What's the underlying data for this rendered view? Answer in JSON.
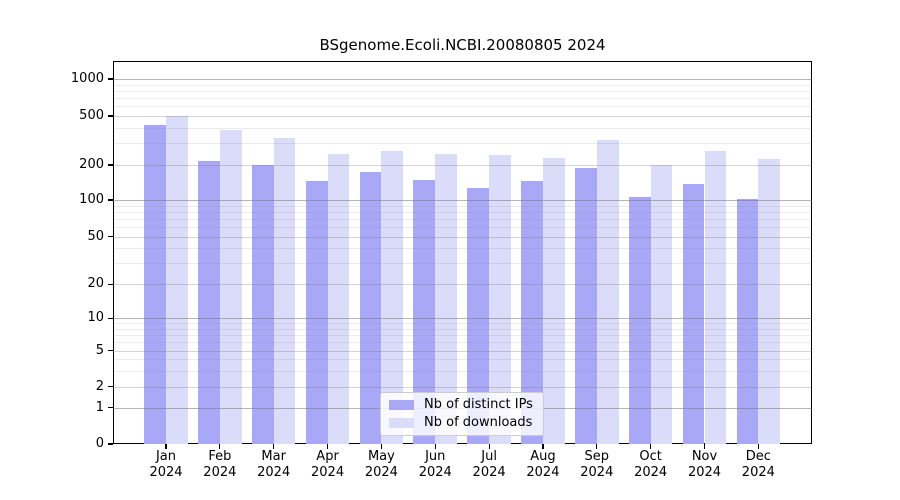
{
  "title": "BSgenome.Ecoli.NCBI.20080805 2024",
  "legend": {
    "items": [
      {
        "label": "Nb of distinct IPs",
        "color": "#a8a8f7",
        "key": "distinct-ips"
      },
      {
        "label": "Nb of downloads",
        "color": "#dbdbfa",
        "key": "downloads"
      }
    ]
  },
  "y_axis": {
    "tick_labels": [
      "0",
      "1",
      "2",
      "5",
      "10",
      "20",
      "50",
      "100",
      "200",
      "500",
      "1000"
    ]
  },
  "x_axis": {
    "months": [
      "Jan",
      "Feb",
      "Mar",
      "Apr",
      "May",
      "Jun",
      "Jul",
      "Aug",
      "Sep",
      "Oct",
      "Nov",
      "Dec"
    ],
    "year": "2024"
  },
  "chart_data": {
    "type": "bar",
    "title": "BSgenome.Ecoli.NCBI.20080805 2024",
    "categories": [
      "Jan 2024",
      "Feb 2024",
      "Mar 2024",
      "Apr 2024",
      "May 2024",
      "Jun 2024",
      "Jul 2024",
      "Aug 2024",
      "Sep 2024",
      "Oct 2024",
      "Nov 2024",
      "Dec 2024"
    ],
    "series": [
      {
        "name": "Nb of distinct IPs",
        "color": "#a8a8f7",
        "values": [
          420,
          215,
          200,
          145,
          175,
          150,
          128,
          145,
          188,
          107,
          138,
          102
        ]
      },
      {
        "name": "Nb of downloads",
        "color": "#dbdbfa",
        "values": [
          500,
          382,
          330,
          245,
          260,
          245,
          240,
          230,
          320,
          200,
          258,
          222
        ]
      }
    ],
    "yscale": "symlog",
    "yticks": [
      0,
      1,
      2,
      5,
      10,
      20,
      50,
      100,
      200,
      500,
      1000
    ],
    "ytick_minor": [
      3,
      4,
      6,
      7,
      8,
      9,
      30,
      40,
      60,
      70,
      80,
      90,
      300,
      400,
      600,
      700,
      800,
      900
    ],
    "ylim": [
      0,
      1400
    ],
    "grid": true,
    "legend_position": "lower center"
  }
}
